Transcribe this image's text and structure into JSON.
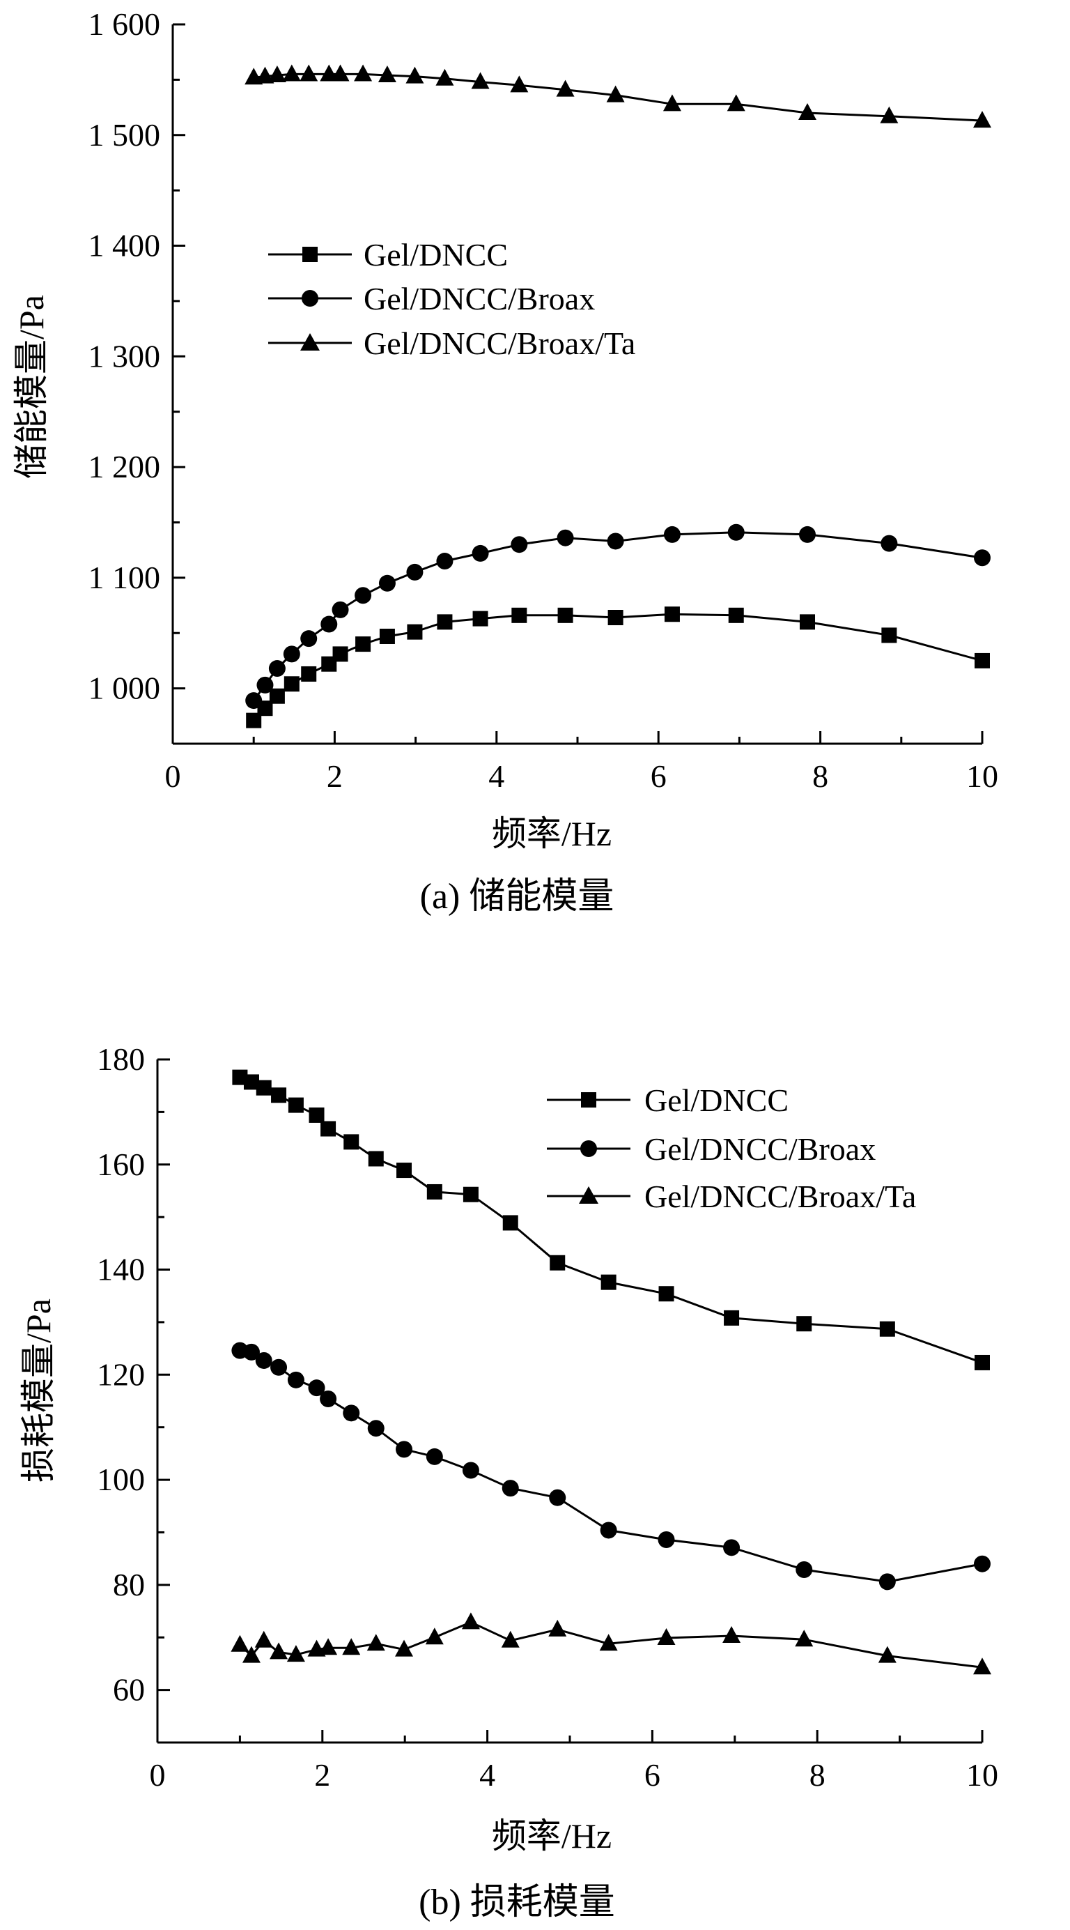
{
  "chart_data": [
    {
      "type": "line",
      "title": "",
      "caption": "(a) 储能模量",
      "xlabel": "频率/Hz",
      "ylabel": "储能模量/Pa",
      "xlim": [
        0,
        10
      ],
      "ylim": [
        950,
        1600
      ],
      "xticks": [
        0,
        2,
        4,
        6,
        8,
        10
      ],
      "xtick_labels": [
        "0",
        "2",
        "4",
        "6",
        "8",
        "10"
      ],
      "yticks": [
        1000,
        1100,
        1200,
        1300,
        1400,
        1500,
        1600
      ],
      "ytick_labels": [
        "1 000",
        "1 100",
        "1 200",
        "1 300",
        "1 400",
        "1 500",
        "1 600"
      ],
      "legend_position": "upper-left",
      "series": [
        {
          "name": "Gel/DNCC",
          "marker": "square",
          "x": [
            1.0,
            1.14,
            1.29,
            1.47,
            1.68,
            1.93,
            2.07,
            2.35,
            2.65,
            2.99,
            3.36,
            3.8,
            4.28,
            4.85,
            5.47,
            6.17,
            6.96,
            7.84,
            8.85,
            10.0
          ],
          "y": [
            971,
            982,
            993,
            1004,
            1013,
            1022,
            1031,
            1040,
            1047,
            1051,
            1060,
            1063,
            1066,
            1066,
            1064,
            1067,
            1066,
            1060,
            1048,
            1025
          ]
        },
        {
          "name": "Gel/DNCC/Broax",
          "marker": "circle",
          "x": [
            1.0,
            1.14,
            1.29,
            1.47,
            1.68,
            1.93,
            2.07,
            2.35,
            2.65,
            2.99,
            3.36,
            3.8,
            4.28,
            4.85,
            5.47,
            6.17,
            6.96,
            7.84,
            8.85,
            10.0
          ],
          "y": [
            989,
            1003,
            1018,
            1031,
            1045,
            1058,
            1071,
            1084,
            1095,
            1105,
            1115,
            1122,
            1130,
            1136,
            1133,
            1139,
            1141,
            1139,
            1131,
            1118
          ]
        },
        {
          "name": "Gel/DNCC/Broax/Ta",
          "marker": "triangle",
          "x": [
            1.0,
            1.14,
            1.29,
            1.47,
            1.68,
            1.93,
            2.07,
            2.35,
            2.65,
            2.99,
            3.36,
            3.8,
            4.28,
            4.85,
            5.47,
            6.17,
            6.96,
            7.84,
            8.85,
            10.0
          ],
          "y": [
            1552,
            1553,
            1554,
            1555,
            1555,
            1555,
            1555,
            1555,
            1554,
            1553,
            1551,
            1548,
            1545,
            1541,
            1536,
            1528,
            1528,
            1520,
            1517,
            1513
          ]
        }
      ]
    },
    {
      "type": "line",
      "title": "",
      "caption": "(b) 损耗模量",
      "xlabel": "频率/Hz",
      "ylabel": "损耗模量/Pa",
      "xlim": [
        0,
        10
      ],
      "ylim": [
        50,
        180
      ],
      "xticks": [
        0,
        2,
        4,
        6,
        8,
        10
      ],
      "xtick_labels": [
        "0",
        "2",
        "4",
        "6",
        "8",
        "10"
      ],
      "yticks": [
        60,
        80,
        100,
        120,
        140,
        160,
        180
      ],
      "ytick_labels": [
        "60",
        "80",
        "100",
        "120",
        "140",
        "160",
        "180"
      ],
      "legend_position": "upper-right",
      "series": [
        {
          "name": "Gel/DNCC",
          "marker": "square",
          "x": [
            1.0,
            1.14,
            1.29,
            1.47,
            1.68,
            1.93,
            2.07,
            2.35,
            2.65,
            2.99,
            3.36,
            3.8,
            4.28,
            4.85,
            5.47,
            6.17,
            6.96,
            7.84,
            8.85,
            10.0
          ],
          "y": [
            176.6,
            175.7,
            174.6,
            173.2,
            171.3,
            169.4,
            166.8,
            164.3,
            161.1,
            158.9,
            154.8,
            154.3,
            148.9,
            141.3,
            137.6,
            135.4,
            130.8,
            129.7,
            128.7,
            122.3
          ]
        },
        {
          "name": "Gel/DNCC/Broax",
          "marker": "circle",
          "x": [
            1.0,
            1.14,
            1.29,
            1.47,
            1.68,
            1.93,
            2.07,
            2.35,
            2.65,
            2.99,
            3.36,
            3.8,
            4.28,
            4.85,
            5.47,
            6.17,
            6.96,
            7.84,
            8.85,
            10.0
          ],
          "y": [
            124.6,
            124.3,
            122.7,
            121.4,
            119.0,
            117.5,
            115.4,
            112.7,
            109.8,
            105.8,
            104.4,
            101.8,
            98.4,
            96.6,
            90.4,
            88.6,
            87.1,
            82.9,
            80.6,
            84.0
          ]
        },
        {
          "name": "Gel/DNCC/Broax/Ta",
          "marker": "triangle",
          "x": [
            1.0,
            1.14,
            1.29,
            1.47,
            1.68,
            1.93,
            2.07,
            2.35,
            2.65,
            2.99,
            3.36,
            3.8,
            4.28,
            4.85,
            5.47,
            6.17,
            6.96,
            7.84,
            8.85,
            10.0
          ],
          "y": [
            68.6,
            66.5,
            69.4,
            67.2,
            66.7,
            67.7,
            68.0,
            68.0,
            68.8,
            67.7,
            70.0,
            72.9,
            69.4,
            71.5,
            68.8,
            69.9,
            70.3,
            69.6,
            66.5,
            64.3
          ]
        }
      ]
    }
  ]
}
